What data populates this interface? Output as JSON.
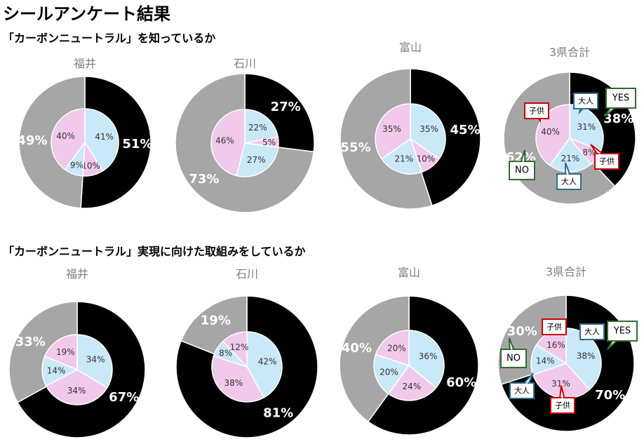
{
  "page_title": "シールアンケート結果",
  "sections": [
    {
      "title": "「カーボンニュートラル」を知っているか"
    },
    {
      "title": "「カーボンニュートラル」実現に向けた取組みをしているか"
    }
  ],
  "colors": {
    "yes": "#000000",
    "no": "#a6a6a6",
    "adult": "#c9e8f8",
    "child": "#f1c9ea",
    "yes_border": "#2f6b2f",
    "adult_border": "#2e6f8e",
    "child_border": "#cc0000"
  },
  "legend_words": {
    "yes": "YES",
    "no": "NO",
    "adult": "大人",
    "child": "子供"
  },
  "chart_data": [
    {
      "type": "pie",
      "section": 0,
      "title": "福井",
      "outer": {
        "yes": 51,
        "no": 49,
        "yes_label": "51%",
        "no_label": "49%"
      },
      "inner": [
        {
          "group": "adult",
          "value": 41,
          "label": "41%"
        },
        {
          "group": "child",
          "value": 10,
          "label": "10%"
        },
        {
          "group": "adult",
          "value": 9,
          "label": "9%"
        },
        {
          "group": "child",
          "value": 40,
          "label": "40%"
        }
      ]
    },
    {
      "type": "pie",
      "section": 0,
      "title": "石川",
      "outer": {
        "yes": 27,
        "no": 73,
        "yes_label": "27%",
        "no_label": "73%"
      },
      "inner": [
        {
          "group": "adult",
          "value": 22,
          "label": "22%"
        },
        {
          "group": "child",
          "value": 5,
          "label": "5%"
        },
        {
          "group": "adult",
          "value": 27,
          "label": "27%"
        },
        {
          "group": "child",
          "value": 46,
          "label": "46%"
        }
      ]
    },
    {
      "type": "pie",
      "section": 0,
      "title": "富山",
      "outer": {
        "yes": 45,
        "no": 55,
        "yes_label": "45%",
        "no_label": "55%"
      },
      "inner": [
        {
          "group": "adult",
          "value": 35,
          "label": "35%"
        },
        {
          "group": "child",
          "value": 10,
          "label": "10%"
        },
        {
          "group": "adult",
          "value": 21,
          "label": "21%"
        },
        {
          "group": "child",
          "value": 35,
          "label": "35%"
        }
      ]
    },
    {
      "type": "pie",
      "section": 0,
      "title": "3県合計",
      "outer": {
        "yes": 38,
        "no": 62,
        "yes_label": "38%",
        "no_label": "62%"
      },
      "inner": [
        {
          "group": "adult",
          "value": 31,
          "label": "31%"
        },
        {
          "group": "child",
          "value": 8,
          "label": "8%"
        },
        {
          "group": "adult",
          "value": 21,
          "label": "21%"
        },
        {
          "group": "child",
          "value": 40,
          "label": "40%"
        }
      ]
    },
    {
      "type": "pie",
      "section": 1,
      "title": "福井",
      "outer": {
        "yes": 67,
        "no": 33,
        "yes_label": "67%",
        "no_label": "33%"
      },
      "inner": [
        {
          "group": "adult",
          "value": 34,
          "label": "34%"
        },
        {
          "group": "child",
          "value": 34,
          "label": "34%"
        },
        {
          "group": "adult",
          "value": 14,
          "label": "14%"
        },
        {
          "group": "child",
          "value": 19,
          "label": "19%"
        }
      ]
    },
    {
      "type": "pie",
      "section": 1,
      "title": "石川",
      "outer": {
        "yes": 81,
        "no": 19,
        "yes_label": "81%",
        "no_label": "19%"
      },
      "inner": [
        {
          "group": "adult",
          "value": 42,
          "label": "42%"
        },
        {
          "group": "child",
          "value": 38,
          "label": "38%"
        },
        {
          "group": "adult",
          "value": 8,
          "label": "8%"
        },
        {
          "group": "child",
          "value": 12,
          "label": "12%"
        }
      ]
    },
    {
      "type": "pie",
      "section": 1,
      "title": "富山",
      "outer": {
        "yes": 60,
        "no": 40,
        "yes_label": "60%",
        "no_label": "40%"
      },
      "inner": [
        {
          "group": "adult",
          "value": 36,
          "label": "36%"
        },
        {
          "group": "child",
          "value": 24,
          "label": "24%"
        },
        {
          "group": "adult",
          "value": 20,
          "label": "20%"
        },
        {
          "group": "child",
          "value": 20,
          "label": "20%"
        }
      ]
    },
    {
      "type": "pie",
      "section": 1,
      "title": "3県合計",
      "outer": {
        "yes": 70,
        "no": 30,
        "yes_label": "70%",
        "no_label": "30%"
      },
      "inner": [
        {
          "group": "adult",
          "value": 38,
          "label": "38%"
        },
        {
          "group": "child",
          "value": 31,
          "label": "31%"
        },
        {
          "group": "adult",
          "value": 14,
          "label": "14%"
        },
        {
          "group": "child",
          "value": 16,
          "label": "16%"
        }
      ]
    }
  ]
}
